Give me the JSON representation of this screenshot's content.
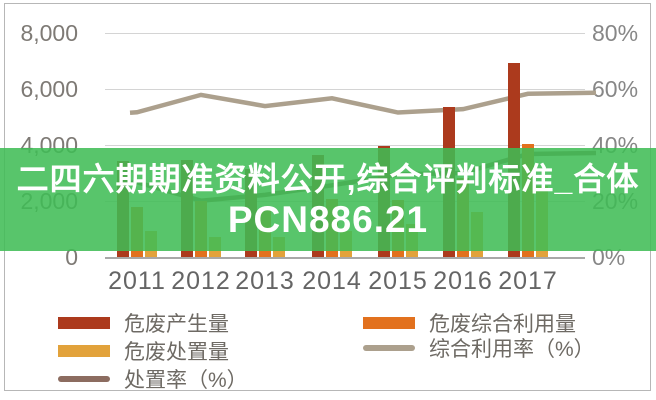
{
  "banner": {
    "line1": "二四六期期准资料公开,综合评判标准_合体",
    "line2": "PCN886.21",
    "bg_color": "#3FBC55",
    "bg_opacity": 0.87,
    "text_color": "#ffffff"
  },
  "chart_data": {
    "type": "bar",
    "subtype": "clustered bars with two percentage lines on secondary axis",
    "categories": [
      "2011",
      "2012",
      "2013",
      "2014",
      "2015",
      "2016",
      "2017"
    ],
    "series": [
      {
        "name": "危废产生量",
        "type": "bar",
        "color": "#AC3A1D",
        "axis": "left",
        "values": [
          3431,
          3465,
          3157,
          3634,
          3976,
          5347,
          6937
        ]
      },
      {
        "name": "危废综合利用量",
        "type": "bar",
        "color": "#E2711E",
        "axis": "left",
        "values": [
          1773,
          2005,
          1700,
          2062,
          2050,
          2824,
          4043
        ]
      },
      {
        "name": "危废处置量",
        "type": "bar",
        "color": "#E2A23B",
        "axis": "left",
        "values": [
          916,
          698,
          701,
          929,
          1174,
          1606,
          2552
        ]
      },
      {
        "name": "综合利用率（%）",
        "type": "line",
        "color": "#ACA08D",
        "axis": "right",
        "values": [
          51.7,
          57.9,
          53.9,
          56.7,
          51.6,
          52.8,
          58.3
        ]
      },
      {
        "name": "处置率（%）",
        "type": "line",
        "color": "#8C6C60",
        "axis": "right",
        "values": [
          26.7,
          20.1,
          22.2,
          25.6,
          29.5,
          30.0,
          36.8
        ]
      }
    ],
    "left_axis": {
      "ticks": [
        "8,000",
        "6,000",
        "4,000",
        "2,000",
        "0"
      ],
      "min": 0,
      "max": 8000
    },
    "right_axis": {
      "ticks": [
        "80%",
        "60%",
        "40%",
        "20%",
        "0%"
      ],
      "min": 0,
      "max": 80
    },
    "grid": true,
    "legend_position": "bottom, two columns"
  },
  "legend": {
    "left_column_series": [
      0,
      2,
      4
    ],
    "right_column_series": [
      1,
      3
    ]
  }
}
